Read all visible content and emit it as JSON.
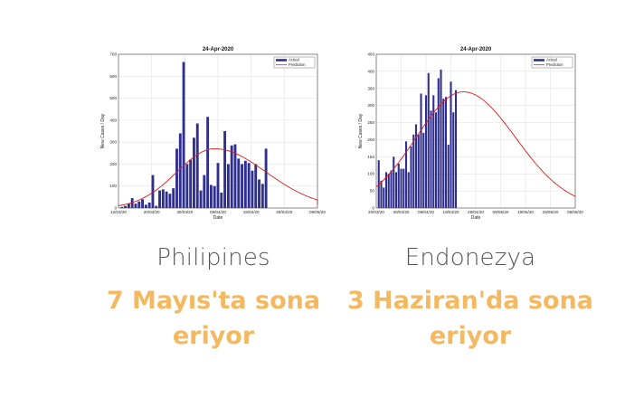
{
  "colors": {
    "bar": "#2f2f8f",
    "prediction": "#e11b1b",
    "grid": "#dddddd",
    "headline": "#f4b860",
    "country": "#555555"
  },
  "cards": [
    {
      "country": "Philipines",
      "verdict_line1": "7 Mayıs'ta sona",
      "verdict_line2": "eriyor"
    },
    {
      "country": "Endonezya",
      "verdict_line1": "3 Haziran'da sona",
      "verdict_line2": "eriyor"
    }
  ],
  "chart_data": [
    {
      "type": "bar",
      "title": "24-Apr-2020",
      "xlabel": "Date",
      "ylabel": "New Cases / Day",
      "legend": [
        "Actual",
        "Prediction"
      ],
      "legend_position": "top-right",
      "grid": true,
      "ylim": [
        0,
        700
      ],
      "yticks": [
        0,
        100,
        200,
        300,
        400,
        500,
        600,
        700
      ],
      "xlim": [
        "2020-03-12",
        "2020-05-09"
      ],
      "xtick_labels": [
        "12/03/20",
        "20/03/20",
        "30/03/20",
        "09/04/20",
        "19/04/20",
        "29/04/20",
        "09/05/20"
      ],
      "series": [
        {
          "name": "Actual",
          "kind": "bar",
          "start_date": "2020-03-13",
          "values": [
            5,
            10,
            20,
            45,
            20,
            30,
            40,
            15,
            25,
            150,
            10,
            80,
            85,
            75,
            65,
            90,
            270,
            340,
            665,
            200,
            220,
            320,
            385,
            80,
            150,
            415,
            105,
            100,
            205,
            70,
            350,
            200,
            285,
            290,
            225,
            200,
            215,
            205,
            170,
            200,
            130,
            110,
            270
          ]
        },
        {
          "name": "Prediction",
          "kind": "line",
          "peak_date": "2020-04-09",
          "peak_value": 270,
          "end_value": 15
        }
      ]
    },
    {
      "type": "bar",
      "title": "24-Apr-2020",
      "xlabel": "Date",
      "ylabel": "New Cases / Day",
      "legend": [
        "Actual",
        "Prediction"
      ],
      "legend_position": "top-right",
      "grid": true,
      "ylim": [
        0,
        450
      ],
      "yticks": [
        0,
        50,
        100,
        150,
        200,
        250,
        300,
        350,
        400,
        450
      ],
      "xlim": [
        "2020-03-20",
        "2020-06-08"
      ],
      "xtick_labels": [
        "20/03/20",
        "30/03/20",
        "09/04/20",
        "19/04/20",
        "29/04/20",
        "09/05/20",
        "19/05/20",
        "29/05/20",
        "08/06/20"
      ],
      "series": [
        {
          "name": "Actual",
          "kind": "bar",
          "start_date": "2020-03-21",
          "values": [
            140,
            80,
            60,
            105,
            100,
            110,
            150,
            105,
            130,
            115,
            115,
            195,
            105,
            180,
            215,
            245,
            215,
            335,
            220,
            330,
            395,
            285,
            330,
            280,
            380,
            405,
            320,
            325,
            185,
            370,
            280,
            345
          ]
        },
        {
          "name": "Prediction",
          "kind": "line",
          "start_value": 50,
          "peak_date": "2020-04-24",
          "peak_value": 340,
          "end_value": 40
        }
      ]
    }
  ]
}
